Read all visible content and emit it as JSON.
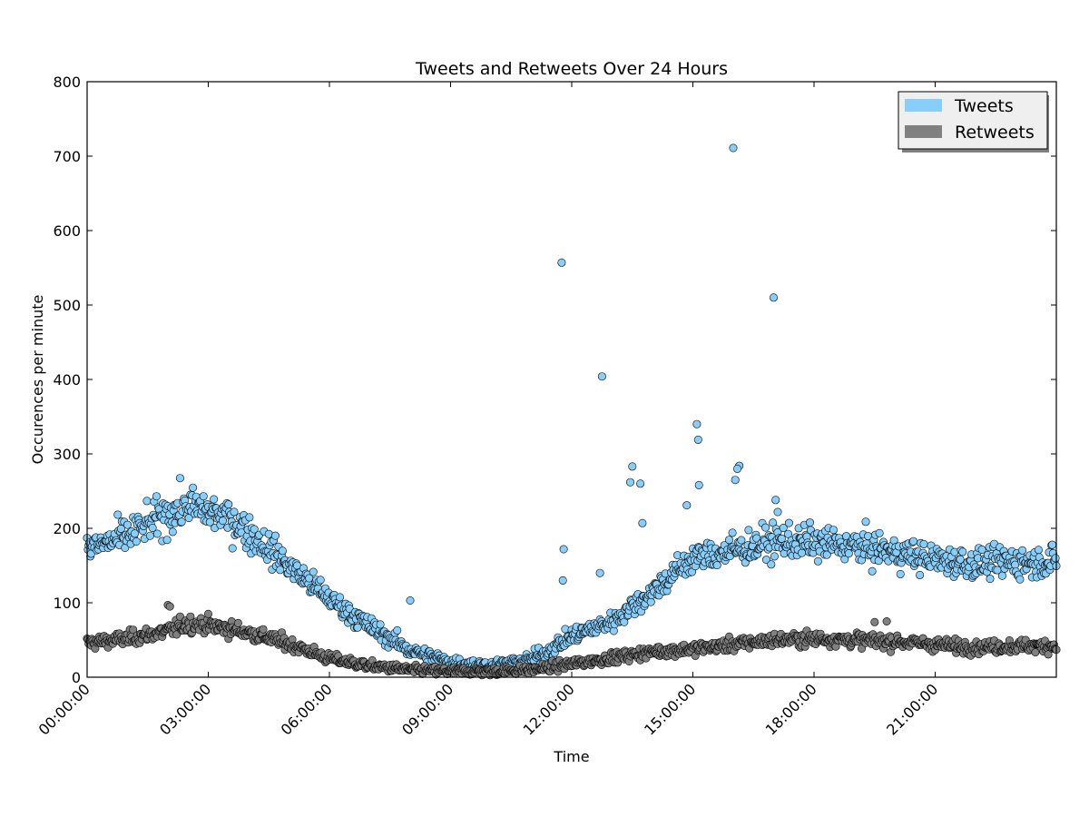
{
  "chart_data": {
    "type": "scatter",
    "title": "Tweets and Retweets Over 24 Hours",
    "xlabel": "Time",
    "ylabel": "Occurences per minute",
    "xlim_hours": [
      0,
      24
    ],
    "ylim": [
      0,
      800
    ],
    "x_ticks_hours": [
      0,
      3,
      6,
      9,
      12,
      15,
      18,
      21
    ],
    "x_tick_labels": [
      "00:00:00",
      "03:00:00",
      "06:00:00",
      "09:00:00",
      "12:00:00",
      "15:00:00",
      "18:00:00",
      "21:00:00"
    ],
    "y_ticks": [
      0,
      100,
      200,
      300,
      400,
      500,
      600,
      700,
      800
    ],
    "legend_position": "top-right",
    "grid": false,
    "x_units": "hours since 00:00:00",
    "series": [
      {
        "name": "Tweets",
        "color": "#87cefa",
        "trend_hours": [
          0,
          1,
          2,
          2.5,
          3,
          3.5,
          4,
          5,
          6,
          7,
          8,
          9,
          10,
          11,
          11.5,
          12,
          13,
          14,
          15,
          16,
          17,
          18,
          19,
          20,
          21,
          22,
          23,
          24
        ],
        "trend_values": [
          172,
          190,
          220,
          230,
          222,
          215,
          195,
          150,
          105,
          68,
          36,
          20,
          15,
          24,
          38,
          55,
          75,
          115,
          160,
          170,
          182,
          180,
          176,
          168,
          158,
          152,
          155,
          155
        ],
        "outliers": [
          {
            "hours": 8.0,
            "value": 103
          },
          {
            "hours": 11.75,
            "value": 557
          },
          {
            "hours": 11.8,
            "value": 172
          },
          {
            "hours": 11.78,
            "value": 130
          },
          {
            "hours": 12.75,
            "value": 404
          },
          {
            "hours": 12.7,
            "value": 140
          },
          {
            "hours": 13.5,
            "value": 283
          },
          {
            "hours": 13.45,
            "value": 262
          },
          {
            "hours": 13.7,
            "value": 260
          },
          {
            "hours": 13.75,
            "value": 207
          },
          {
            "hours": 14.85,
            "value": 231
          },
          {
            "hours": 15.1,
            "value": 340
          },
          {
            "hours": 15.13,
            "value": 319
          },
          {
            "hours": 15.15,
            "value": 258
          },
          {
            "hours": 16.0,
            "value": 711
          },
          {
            "hours": 16.05,
            "value": 265
          },
          {
            "hours": 16.15,
            "value": 284
          },
          {
            "hours": 16.1,
            "value": 280
          },
          {
            "hours": 17.0,
            "value": 510
          },
          {
            "hours": 17.05,
            "value": 238
          },
          {
            "hours": 17.1,
            "value": 222
          }
        ]
      },
      {
        "name": "Retweets",
        "color": "#808080",
        "trend_hours": [
          0,
          1,
          2,
          2.5,
          3,
          4,
          5,
          6,
          7,
          8,
          9,
          10,
          11,
          12,
          13,
          14,
          15,
          16,
          17,
          18,
          19,
          20,
          21,
          22,
          23,
          24
        ],
        "trend_values": [
          46,
          52,
          62,
          72,
          70,
          60,
          45,
          25,
          15,
          10,
          8,
          8,
          10,
          18,
          26,
          34,
          38,
          44,
          50,
          52,
          50,
          48,
          44,
          40,
          42,
          42
        ],
        "outliers": [
          {
            "hours": 2.0,
            "value": 97
          },
          {
            "hours": 2.05,
            "value": 95
          },
          {
            "hours": 19.5,
            "value": 74
          },
          {
            "hours": 19.8,
            "value": 75
          }
        ]
      }
    ]
  }
}
